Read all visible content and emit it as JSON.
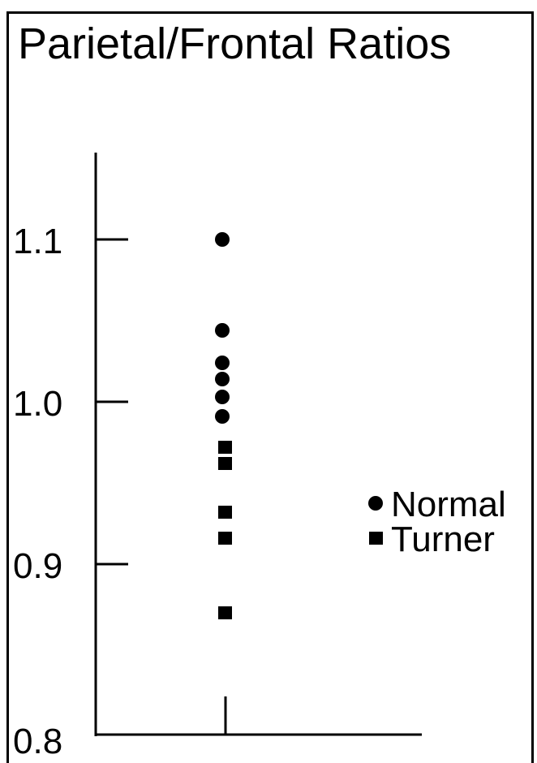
{
  "chart_data": {
    "type": "scatter",
    "title": "Parietal/Frontal Ratios",
    "xlabel": "",
    "ylabel": "",
    "ylim": [
      0.8,
      1.15
    ],
    "yticks": [
      "0.8",
      "0.9",
      "1.0",
      "1.1"
    ],
    "grid": false,
    "legend_position": "right",
    "series": [
      {
        "name": "Normal",
        "marker": "circle",
        "values": [
          1.1,
          1.044,
          1.024,
          1.014,
          1.003,
          0.991
        ]
      },
      {
        "name": "Turner",
        "marker": "square",
        "values": [
          0.972,
          0.962,
          0.932,
          0.916,
          0.87
        ]
      }
    ]
  }
}
